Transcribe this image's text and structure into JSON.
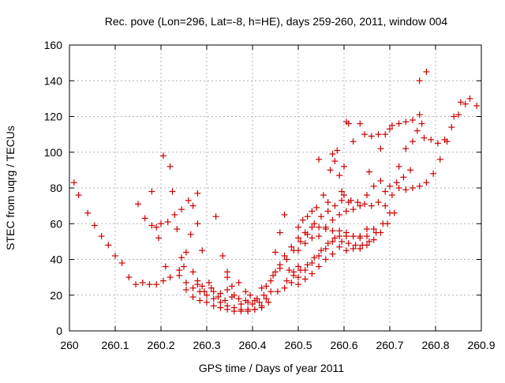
{
  "chart_data": {
    "type": "scatter",
    "title": "Rec. pove (Lon=296, Lat=-8, h=HE), days 259-260, 2011, window 004",
    "xlabel": "GPS time / Days of year 2011",
    "ylabel": "STEC from uqrg / TECUs",
    "xlim": [
      260,
      260.9
    ],
    "ylim": [
      0,
      160
    ],
    "x_ticks": [
      "260",
      "260.1",
      "260.2",
      "260.3",
      "260.4",
      "260.5",
      "260.6",
      "260.7",
      "260.8",
      "260.9"
    ],
    "y_ticks": [
      "0",
      "20",
      "40",
      "60",
      "80",
      "100",
      "120",
      "140",
      "160"
    ],
    "grid": true,
    "marker": "plus",
    "color": "#cc0000",
    "points": [
      [
        260.01,
        83
      ],
      [
        260.02,
        76
      ],
      [
        260.04,
        66
      ],
      [
        260.055,
        59
      ],
      [
        260.07,
        53
      ],
      [
        260.085,
        48
      ],
      [
        260.1,
        42
      ],
      [
        260.115,
        38
      ],
      [
        260.13,
        30
      ],
      [
        260.145,
        26
      ],
      [
        260.16,
        27
      ],
      [
        260.175,
        26
      ],
      [
        260.19,
        26
      ],
      [
        260.205,
        28
      ],
      [
        260.22,
        30
      ],
      [
        260.15,
        71
      ],
      [
        260.165,
        63
      ],
      [
        260.18,
        59
      ],
      [
        260.19,
        58
      ],
      [
        260.2,
        60
      ],
      [
        260.215,
        61
      ],
      [
        260.23,
        65
      ],
      [
        260.245,
        68
      ],
      [
        260.26,
        73
      ],
      [
        260.18,
        78
      ],
      [
        260.195,
        52
      ],
      [
        260.205,
        98
      ],
      [
        260.21,
        36
      ],
      [
        260.22,
        92
      ],
      [
        260.225,
        78
      ],
      [
        260.235,
        57
      ],
      [
        260.24,
        34
      ],
      [
        260.245,
        41
      ],
      [
        260.25,
        36
      ],
      [
        260.255,
        44
      ],
      [
        260.265,
        54
      ],
      [
        260.27,
        70
      ],
      [
        260.28,
        77
      ],
      [
        260.28,
        60
      ],
      [
        260.29,
        45
      ],
      [
        260.32,
        64
      ],
      [
        260.335,
        42
      ],
      [
        260.24,
        31
      ],
      [
        260.255,
        27
      ],
      [
        260.27,
        24
      ],
      [
        260.285,
        22
      ],
      [
        260.3,
        20
      ],
      [
        260.315,
        18
      ],
      [
        260.33,
        16
      ],
      [
        260.345,
        14
      ],
      [
        260.36,
        13
      ],
      [
        260.375,
        12
      ],
      [
        260.39,
        12
      ],
      [
        260.405,
        12
      ],
      [
        260.42,
        14
      ],
      [
        260.435,
        16
      ],
      [
        260.255,
        23
      ],
      [
        260.27,
        19
      ],
      [
        260.285,
        17
      ],
      [
        260.3,
        16
      ],
      [
        260.315,
        14
      ],
      [
        260.33,
        13
      ],
      [
        260.345,
        12
      ],
      [
        260.36,
        11
      ],
      [
        260.375,
        11
      ],
      [
        260.39,
        11
      ],
      [
        260.405,
        12
      ],
      [
        260.42,
        13
      ],
      [
        260.27,
        33
      ],
      [
        260.28,
        28
      ],
      [
        260.29,
        25
      ],
      [
        260.305,
        27
      ],
      [
        260.315,
        22
      ],
      [
        260.33,
        21
      ],
      [
        260.345,
        23
      ],
      [
        260.355,
        25
      ],
      [
        260.37,
        27
      ],
      [
        260.385,
        22
      ],
      [
        260.395,
        20
      ],
      [
        260.41,
        18
      ],
      [
        260.425,
        20
      ],
      [
        260.28,
        26
      ],
      [
        260.295,
        22
      ],
      [
        260.31,
        24
      ],
      [
        260.325,
        19
      ],
      [
        260.34,
        17
      ],
      [
        260.355,
        19
      ],
      [
        260.37,
        18
      ],
      [
        260.385,
        17
      ],
      [
        260.4,
        15
      ],
      [
        260.415,
        16
      ],
      [
        260.43,
        18
      ],
      [
        260.345,
        30
      ],
      [
        260.345,
        33
      ],
      [
        260.36,
        20
      ],
      [
        260.375,
        15
      ],
      [
        260.39,
        16
      ],
      [
        260.405,
        17
      ],
      [
        260.42,
        24
      ],
      [
        260.44,
        22
      ],
      [
        260.455,
        22
      ],
      [
        260.47,
        24
      ],
      [
        260.485,
        27
      ],
      [
        260.5,
        30
      ],
      [
        260.515,
        34
      ],
      [
        260.53,
        38
      ],
      [
        260.545,
        42
      ],
      [
        260.56,
        46
      ],
      [
        260.575,
        50
      ],
      [
        260.59,
        53
      ],
      [
        260.605,
        53
      ],
      [
        260.62,
        53
      ],
      [
        260.635,
        53
      ],
      [
        260.65,
        57
      ],
      [
        260.43,
        25
      ],
      [
        260.44,
        28
      ],
      [
        260.45,
        33
      ],
      [
        260.46,
        37
      ],
      [
        260.47,
        42
      ],
      [
        260.485,
        47
      ],
      [
        260.5,
        52
      ],
      [
        260.515,
        55
      ],
      [
        260.53,
        58
      ],
      [
        260.545,
        58
      ],
      [
        260.56,
        58
      ],
      [
        260.575,
        56
      ],
      [
        260.59,
        56
      ],
      [
        260.605,
        55
      ],
      [
        260.62,
        53
      ],
      [
        260.635,
        52
      ],
      [
        260.65,
        53
      ],
      [
        260.665,
        57
      ],
      [
        260.445,
        31
      ],
      [
        260.46,
        35
      ],
      [
        260.475,
        40
      ],
      [
        260.49,
        45
      ],
      [
        260.505,
        50
      ],
      [
        260.52,
        54
      ],
      [
        260.535,
        60
      ],
      [
        260.55,
        64
      ],
      [
        260.565,
        67
      ],
      [
        260.58,
        70
      ],
      [
        260.595,
        73
      ],
      [
        260.61,
        72
      ],
      [
        260.45,
        44
      ],
      [
        260.46,
        55
      ],
      [
        260.47,
        65
      ],
      [
        260.48,
        34
      ],
      [
        260.49,
        33
      ],
      [
        260.5,
        36
      ],
      [
        260.5,
        58
      ],
      [
        260.51,
        62
      ],
      [
        260.52,
        64
      ],
      [
        260.53,
        67
      ],
      [
        260.54,
        69
      ],
      [
        260.545,
        96
      ],
      [
        260.555,
        76
      ],
      [
        260.565,
        72
      ],
      [
        260.57,
        90
      ],
      [
        260.575,
        99
      ],
      [
        260.585,
        101
      ],
      [
        260.59,
        87
      ],
      [
        260.595,
        78
      ],
      [
        260.475,
        28
      ],
      [
        260.49,
        31
      ],
      [
        260.505,
        34
      ],
      [
        260.52,
        37
      ],
      [
        260.535,
        41
      ],
      [
        260.55,
        45
      ],
      [
        260.565,
        49
      ],
      [
        260.58,
        52
      ],
      [
        260.595,
        50
      ],
      [
        260.61,
        49
      ],
      [
        260.625,
        48
      ],
      [
        260.64,
        48
      ],
      [
        260.655,
        50
      ],
      [
        260.67,
        55
      ],
      [
        260.685,
        60
      ],
      [
        260.7,
        66
      ],
      [
        260.5,
        26
      ],
      [
        260.515,
        29
      ],
      [
        260.53,
        32
      ],
      [
        260.545,
        36
      ],
      [
        260.56,
        40
      ],
      [
        260.575,
        43
      ],
      [
        260.59,
        47
      ],
      [
        260.605,
        45
      ],
      [
        260.62,
        46
      ],
      [
        260.635,
        46
      ],
      [
        260.65,
        48
      ],
      [
        260.665,
        51
      ],
      [
        260.68,
        55
      ],
      [
        260.695,
        60
      ],
      [
        260.71,
        66
      ],
      [
        260.5,
        45
      ],
      [
        260.515,
        49
      ],
      [
        260.53,
        52
      ],
      [
        260.545,
        53
      ],
      [
        260.56,
        57
      ],
      [
        260.575,
        62
      ],
      [
        260.59,
        65
      ],
      [
        260.605,
        67
      ],
      [
        260.62,
        68
      ],
      [
        260.635,
        70
      ],
      [
        260.65,
        76
      ],
      [
        260.665,
        81
      ],
      [
        260.68,
        84
      ],
      [
        260.58,
        95
      ],
      [
        260.6,
        92
      ],
      [
        260.605,
        117
      ],
      [
        260.61,
        116
      ],
      [
        260.62,
        106
      ],
      [
        260.635,
        116
      ],
      [
        260.645,
        110
      ],
      [
        260.655,
        89
      ],
      [
        260.66,
        109
      ],
      [
        260.675,
        110
      ],
      [
        260.68,
        102
      ],
      [
        260.69,
        110
      ],
      [
        260.7,
        113
      ],
      [
        260.6,
        76
      ],
      [
        260.615,
        73
      ],
      [
        260.63,
        72
      ],
      [
        260.645,
        71
      ],
      [
        260.66,
        70
      ],
      [
        260.675,
        72
      ],
      [
        260.69,
        78
      ],
      [
        260.7,
        81
      ],
      [
        260.715,
        83
      ],
      [
        260.73,
        86
      ],
      [
        260.745,
        90
      ],
      [
        260.69,
        70
      ],
      [
        260.705,
        76
      ],
      [
        260.72,
        80
      ],
      [
        260.735,
        79
      ],
      [
        260.75,
        80
      ],
      [
        260.765,
        81
      ],
      [
        260.78,
        83
      ],
      [
        260.795,
        88
      ],
      [
        260.81,
        96
      ],
      [
        260.825,
        106
      ],
      [
        260.705,
        115
      ],
      [
        260.72,
        116
      ],
      [
        260.735,
        117
      ],
      [
        260.75,
        118
      ],
      [
        260.765,
        121
      ],
      [
        260.775,
        108
      ],
      [
        260.79,
        107
      ],
      [
        260.805,
        105
      ],
      [
        260.82,
        107
      ],
      [
        260.72,
        92
      ],
      [
        260.735,
        102
      ],
      [
        260.75,
        106
      ],
      [
        260.76,
        112
      ],
      [
        260.77,
        116
      ],
      [
        260.765,
        140
      ],
      [
        260.78,
        145
      ],
      [
        260.835,
        114
      ],
      [
        260.84,
        120
      ],
      [
        260.85,
        121
      ],
      [
        260.855,
        128
      ],
      [
        260.865,
        127
      ],
      [
        260.875,
        130
      ],
      [
        260.89,
        126
      ]
    ]
  }
}
